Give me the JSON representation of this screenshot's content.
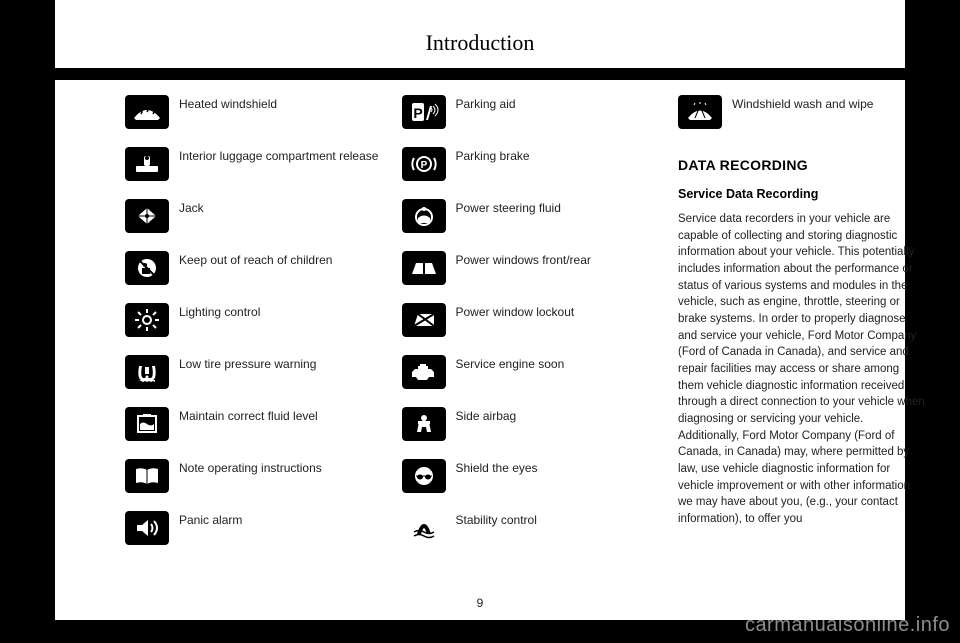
{
  "title": "Introduction",
  "page_number": "9",
  "watermark": "carmanualsonline.info",
  "col1": [
    {
      "name": "heated-windshield",
      "label": "Heated windshield",
      "glyph": "windshield-heat"
    },
    {
      "name": "interior-luggage-release",
      "label": "Interior luggage compartment release",
      "glyph": "luggage"
    },
    {
      "name": "jack",
      "label": "Jack",
      "glyph": "jack"
    },
    {
      "name": "keep-out-of-reach",
      "label": "Keep out of reach of children",
      "glyph": "nochild"
    },
    {
      "name": "lighting-control",
      "label": "Lighting control",
      "glyph": "light"
    },
    {
      "name": "low-tire-pressure",
      "label": "Low tire pressure warning",
      "glyph": "tpms"
    },
    {
      "name": "maintain-fluid-level",
      "label": "Maintain correct fluid level",
      "glyph": "fluid"
    },
    {
      "name": "note-operating-instructions",
      "label": "Note operating instructions",
      "glyph": "book"
    },
    {
      "name": "panic-alarm",
      "label": "Panic alarm",
      "glyph": "speaker"
    }
  ],
  "col2": [
    {
      "name": "parking-aid",
      "label": "Parking aid",
      "glyph": "parkaid"
    },
    {
      "name": "parking-brake",
      "label": "Parking brake",
      "glyph": "pbrake"
    },
    {
      "name": "power-steering-fluid",
      "label": "Power steering fluid",
      "glyph": "psfluid"
    },
    {
      "name": "power-windows",
      "label": "Power windows front/rear",
      "glyph": "windows"
    },
    {
      "name": "power-window-lockout",
      "label": "Power window lockout",
      "glyph": "winlock"
    },
    {
      "name": "service-engine-soon",
      "label": "Service engine soon",
      "glyph": "engine"
    },
    {
      "name": "side-airbag",
      "label": "Side airbag",
      "glyph": "airbag"
    },
    {
      "name": "shield-eyes",
      "label": "Shield the eyes",
      "glyph": "goggles"
    },
    {
      "name": "stability-control",
      "label": "Stability control",
      "glyph": "stability"
    }
  ],
  "col3_items": [
    {
      "name": "windshield-wash-wipe",
      "label": "Windshield wash and wipe",
      "glyph": "wipe"
    }
  ],
  "section_heading": "DATA RECORDING",
  "subsection_heading": "Service Data Recording",
  "body": "Service data recorders in your vehicle are capable of collecting and storing diagnostic information about your vehicle. This potentially includes information about the performance or status of various systems and modules in the vehicle, such as engine, throttle, steering or brake systems. In order to properly diagnose and service your vehicle, Ford Motor Company (Ford of Canada in Canada), and service and repair facilities may access or share among them vehicle diagnostic information received through a direct connection to your vehicle when diagnosing or servicing your vehicle. Additionally, Ford Motor Company (Ford of Canada, in Canada) may, where permitted by law, use vehicle diagnostic information for vehicle improvement or with other information we may have about you, (e.g., your contact information), to offer you",
  "icon_svgs": {
    "windshield-heat": "<svg viewBox='0 0 30 24'><path fill='#fff' d='M2 18 Q15 2 28 18 L26 20 L4 20 Z'/><path stroke='#000' stroke-width='1.5' fill='none' d='M9 8 q2 3 0 6 M15 6 q2 3 0 6 M21 8 q2 3 0 6'/></svg>",
    "luggage": "<svg viewBox='0 0 30 24'><rect x='4' y='14' width='22' height='6' fill='#fff' rx='1'/><rect x='12' y='4' width='6' height='10' fill='#fff' rx='2'/><circle cx='15' cy='6' r='2' fill='#000'/></svg>",
    "jack": "<svg viewBox='0 0 30 24'><path fill='#fff' d='M15 4 L24 12 L15 20 L6 12 Z'/><path stroke='#000' fill='none' d='M15 4 L15 20 M6 12 L24 12'/><circle cx='15' cy='12' r='2' fill='#000'/></svg>",
    "nochild": "<svg viewBox='0 0 30 24'><circle cx='15' cy='12' r='9' fill='#fff'/><circle cx='13' cy='9' r='2' fill='#000'/><path fill='#000' d='M10 12 h8 v6 h-8z'/><line x1='8' y1='5' x2='22' y2='19' stroke='#000' stroke-width='2'/></svg>",
    "light": "<svg viewBox='0 0 30 24'><circle cx='15' cy='12' r='4' fill='none' stroke='#fff' stroke-width='2'/><g stroke='#fff' stroke-width='2'><line x1='15' y1='1' x2='15' y2='5'/><line x1='15' y1='19' x2='15' y2='23'/><line x1='3' y1='12' x2='7' y2='12'/><line x1='23' y1='12' x2='27' y2='12'/><line x1='6' y1='4' x2='9' y2='7'/><line x1='21' y1='17' x2='24' y2='20'/><line x1='6' y1='20' x2='9' y2='17'/><line x1='21' y1='7' x2='24' y2='4'/></g></svg>",
    "tpms": "<svg viewBox='0 0 30 24'><path fill='#fff' d='M7 6 Q5 18 9 20 L21 20 Q25 18 23 6 L20 6 Q22 16 19 18 L11 18 Q8 16 10 6 Z'/><rect x='13' y='7' width='4' height='7' fill='#fff'/><circle cx='15' cy='17' r='1.5' fill='#fff'/><path fill='#fff' d='M7 20 h16 v2 l-2 -1 l-2 1 l-2 -1 l-2 1 l-2 -1 l-2 1 l-2 -1 z'/></svg>",
    "fluid": "<svg viewBox='0 0 30 24'><rect x='6' y='4' width='18' height='16' fill='none' stroke='#fff' stroke-width='2'/><path fill='#fff' d='M8 12 q3 -3 7 0 t7 0 L22 18 L8 18 Z'/><rect x='11' y='2' width='8' height='3' fill='#fff'/></svg>",
    "book": "<svg viewBox='0 0 30 24'><path fill='#fff' d='M4 5 Q10 3 15 6 Q20 3 26 5 L26 19 Q20 17 15 20 Q10 17 4 19 Z'/><line x1='15' y1='6' x2='15' y2='20' stroke='#000'/></svg>",
    "speaker": "<svg viewBox='0 0 30 24'><path fill='#fff' d='M5 9 h5 l6 -5 v16 l-6 -5 h-5 z'/><path stroke='#fff' fill='none' stroke-width='2' d='M19 8 q3 4 0 8 M22 5 q6 7 0 14'/></svg>",
    "parkaid": "<svg viewBox='0 0 30 24'><rect x='3' y='3' width='12' height='18' fill='#fff' rx='2'/><text x='9' y='18' font-size='14' font-weight='bold' fill='#000' text-anchor='middle' font-family='Arial'>P</text><path fill='#fff' d='M17 20 l4 -14 l2 0 l-4 14 z'/><path stroke='#fff' fill='none' d='M22 8 q2 2 0 4 M24 6 q4 4 0 8 M26 4 q6 6 0 12'/></svg>",
    "pbrake": "<svg viewBox='0 0 30 24'><circle cx='15' cy='12' r='7' fill='none' stroke='#fff' stroke-width='2'/><text x='15' y='16' font-size='10' font-weight='bold' fill='#fff' text-anchor='middle' font-family='Arial'>P</text><path stroke='#fff' fill='none' stroke-width='2' d='M5 6 A12 12 0 0 0 5 18 M25 6 A12 12 0 0 1 25 18'/></svg>",
    "psfluid": "<svg viewBox='0 0 30 24'><circle cx='15' cy='13' r='8' fill='none' stroke='#fff' stroke-width='2'/><path fill='#fff' d='M9 14 q6 -5 12 0 l0 5 l-12 0 z'/><circle cx='15' cy='5' r='2' fill='#fff'/></svg>",
    "windows": "<svg viewBox='0 0 30 24'><path fill='#fff' d='M3 18 L7 7 L14 7 L14 18 Z M16 18 L16 7 L23 7 L27 18 Z'/></svg>",
    "winlock": "<svg viewBox='0 0 30 24'><path fill='#fff' d='M5 18 L9 6 L25 6 L25 18 Z'/><line x1='5' y1='18' x2='25' y2='6' stroke='#000' stroke-width='2'/><line x1='9' y1='6' x2='25' y2='18' stroke='#000' stroke-width='2'/></svg>",
    "engine": "<svg viewBox='0 0 30 24'><path fill='#fff' d='M6 9 h3 v-3 h10 v3 h3 l3 3 v5 h-5 l-2 3 h-9 l-2 -3 h-4 v-5 z'/><rect x='11' y='4' width='6' height='2' fill='#fff'/></svg>",
    "airbag": "<svg viewBox='0 0 30 24'><circle cx='15' cy='6' r='3' fill='#fff'/><path fill='#fff' d='M10 10 h10 l2 10 h-4 l-1 -5 h-4 l-1 5 h-4 z'/><rect x='9' y='9' width='12' height='3' fill='#fff'/></svg>",
    "goggles": "<svg viewBox='0 0 30 24'><circle cx='15' cy='12' r='9' fill='#fff'/><ellipse cx='11' cy='13' rx='3' ry='2.5' fill='#000'/><ellipse cx='19' cy='13' rx='3' ry='2.5' fill='#000'/><path stroke='#000' fill='none' d='M7 12 h16'/></svg>",
    "stability": "<svg viewBox='0 0 30 24'><rect x='0' y='0' width='30' height='24' fill='#fff'/><path fill='#000' d='M8 18 q3 -10 7 -10 q4 0 7 10 l-4 0 q-2 -6 -3 -6 q-1 0 -3 6 z'/><path stroke='#000' fill='none' stroke-width='1.5' d='M5 20 q5 -3 10 0 t10 0 M5 16 q5 -3 10 0 t10 0'/></svg>",
    "wipe": "<svg viewBox='0 0 30 24'><path fill='#fff' d='M3 18 Q15 3 27 18 L25 20 L5 20 Z'/><path stroke='#000' d='M15 6 L10 18 M15 6 L20 18'/><path fill='#000' d='M13 4 l2 -2 l2 2 l-1 0 l0 2 l-2 0 l0 -2 z'/><path stroke='#fff' fill='none' d='M10 3 l-1 2 M15 2 l0 2 M20 3 l1 2'/></svg>"
  }
}
